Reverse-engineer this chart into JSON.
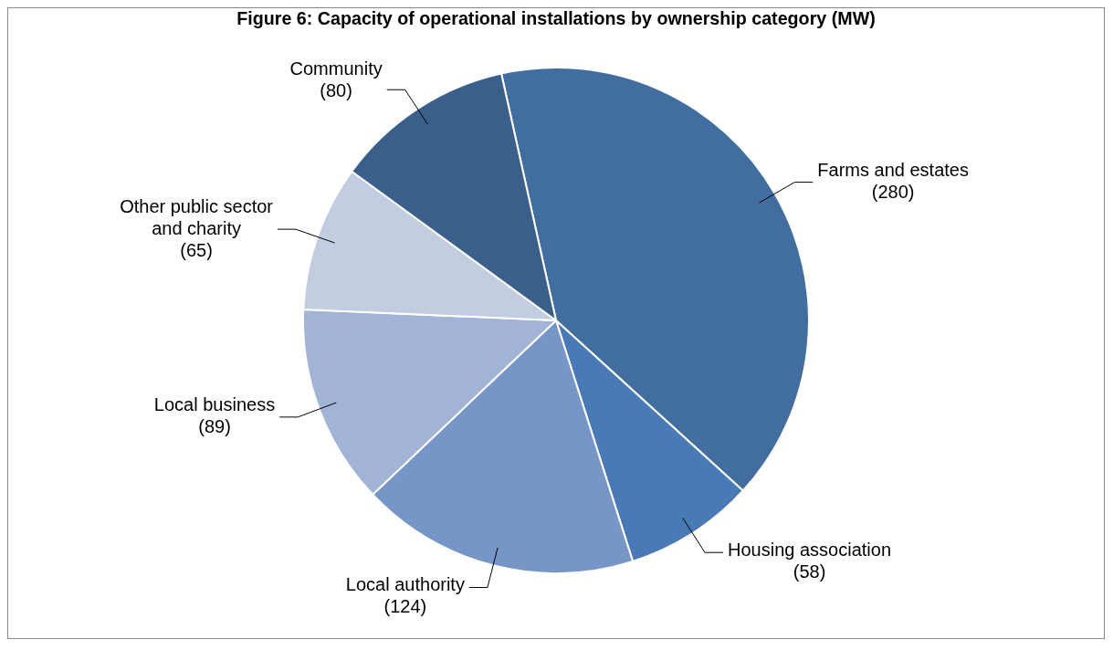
{
  "chart_data": {
    "type": "pie",
    "title": "Figure 6: Capacity of operational installations by ownership category (MW)",
    "categories": [
      "Farms and estates",
      "Housing association",
      "Local authority",
      "Local business",
      "Other public sector and charity",
      "Community"
    ],
    "values": [
      280,
      58,
      124,
      89,
      65,
      80
    ],
    "colors": [
      "#416d9f",
      "#4a7ab5",
      "#7696c7",
      "#a1b4d5",
      "#c3cde2",
      "#3a5f8b"
    ],
    "value_labels": [
      "(280)",
      "(58)",
      "(124)",
      "(89)",
      "(65)",
      "(80)"
    ],
    "legend": false
  }
}
